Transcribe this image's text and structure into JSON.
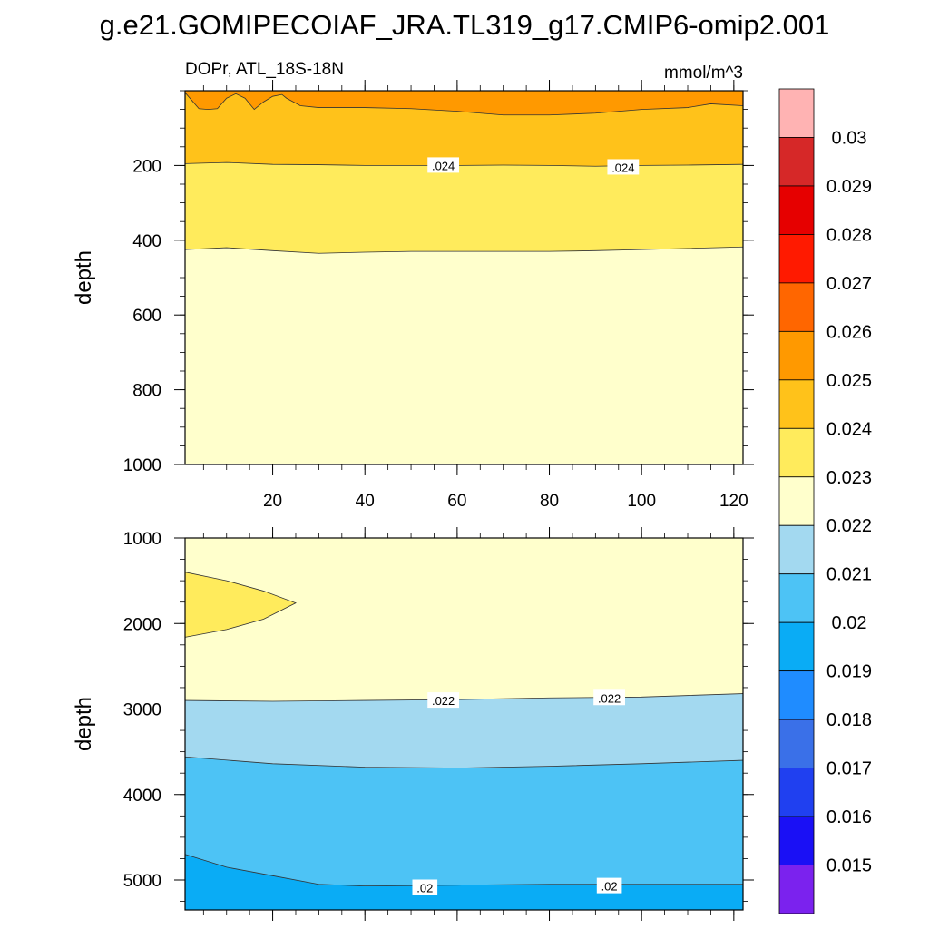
{
  "title": "g.e21.GOMIPECOIAF_JRA.TL319_g17.CMIP6-omip2.001",
  "subtitle_left": "DOPr, ATL_18S-18N",
  "units": "mmol/m^3",
  "colorbar": {
    "labels": [
      "0.03",
      "0.029",
      "0.028",
      "0.027",
      "0.026",
      "0.025",
      "0.024",
      "0.023",
      "0.022",
      "0.021",
      "0.02",
      "0.019",
      "0.018",
      "0.017",
      "0.016",
      "0.015"
    ],
    "colors": [
      "#ffb3b3",
      "#d62828",
      "#e60000",
      "#ff1a00",
      "#ff6600",
      "#ff9900",
      "#ffc21a",
      "#ffeb5c",
      "#ffffcc",
      "#a3d9f0",
      "#4dc3f5",
      "#0aacf5",
      "#1f8cff",
      "#3a70e8",
      "#2040f0",
      "#1a10f5",
      "#7b22ee"
    ]
  },
  "chart_data": [
    {
      "type": "filled-contour",
      "panel": "upper",
      "title": "DOPr, ATL_18S-18N",
      "units": "mmol/m^3",
      "xlabel": "",
      "ylabel": "depth",
      "xlim": [
        1,
        122
      ],
      "ylim": [
        1000,
        0
      ],
      "xticks": [
        "20",
        "40",
        "60",
        "80",
        "100",
        "120"
      ],
      "yticks": [
        "200",
        "400",
        "600",
        "800",
        "1000"
      ],
      "contour_lines": [
        {
          "level": 0.025,
          "x": [
            1,
            4,
            6,
            8,
            10,
            12,
            14,
            16,
            18,
            20,
            22,
            23,
            26,
            30,
            40,
            50,
            60,
            70,
            80,
            90,
            100,
            110,
            115,
            122
          ],
          "depth": [
            5,
            48,
            50,
            48,
            20,
            8,
            20,
            50,
            30,
            15,
            10,
            20,
            40,
            45,
            45,
            48,
            55,
            65,
            65,
            60,
            50,
            45,
            35,
            40
          ]
        },
        {
          "level": 0.024,
          "x": [
            1,
            10,
            20,
            30,
            40,
            50,
            60,
            70,
            80,
            90,
            100,
            110,
            122
          ],
          "depth": [
            195,
            192,
            197,
            198,
            200,
            200,
            200,
            199,
            200,
            202,
            200,
            199,
            197
          ]
        },
        {
          "level": 0.023,
          "x": [
            1,
            10,
            20,
            30,
            40,
            50,
            60,
            70,
            80,
            90,
            100,
            110,
            122
          ],
          "depth": [
            425,
            420,
            428,
            435,
            432,
            430,
            430,
            430,
            430,
            428,
            425,
            422,
            418
          ]
        }
      ],
      "contour_labels": [
        {
          "text": ".024",
          "x": 57,
          "depth": 200
        },
        {
          "text": ".024",
          "x": 96,
          "depth": 205
        }
      ]
    },
    {
      "type": "filled-contour",
      "panel": "lower",
      "units": "mmol/m^3",
      "xlabel": "",
      "ylabel": "depth",
      "xlim": [
        1,
        122
      ],
      "ylim": [
        5350,
        1000
      ],
      "yticks": [
        "1000",
        "2000",
        "3000",
        "4000",
        "5000"
      ],
      "contour_lines": [
        {
          "level": 0.023,
          "x": [
            1,
            10,
            18,
            25,
            18,
            10,
            1
          ],
          "depth": [
            1400,
            1500,
            1620,
            1760,
            1950,
            2070,
            2160
          ]
        },
        {
          "level": 0.022,
          "x": [
            1,
            20,
            40,
            60,
            80,
            100,
            122
          ],
          "depth": [
            2900,
            2910,
            2900,
            2890,
            2870,
            2860,
            2820
          ]
        },
        {
          "level": 0.021,
          "x": [
            1,
            20,
            40,
            60,
            80,
            100,
            122
          ],
          "depth": [
            3560,
            3640,
            3680,
            3690,
            3670,
            3640,
            3600
          ]
        },
        {
          "level": 0.02,
          "x": [
            1,
            10,
            20,
            30,
            40,
            60,
            80,
            100,
            122
          ],
          "depth": [
            4700,
            4850,
            4950,
            5050,
            5070,
            5060,
            5050,
            5050,
            5050
          ]
        }
      ],
      "contour_labels": [
        {
          "text": ".022",
          "x": 57,
          "depth": 2900
        },
        {
          "text": ".022",
          "x": 93,
          "depth": 2870
        },
        {
          "text": ".02",
          "x": 53,
          "depth": 5090
        },
        {
          "text": ".02",
          "x": 93,
          "depth": 5070
        }
      ]
    }
  ]
}
